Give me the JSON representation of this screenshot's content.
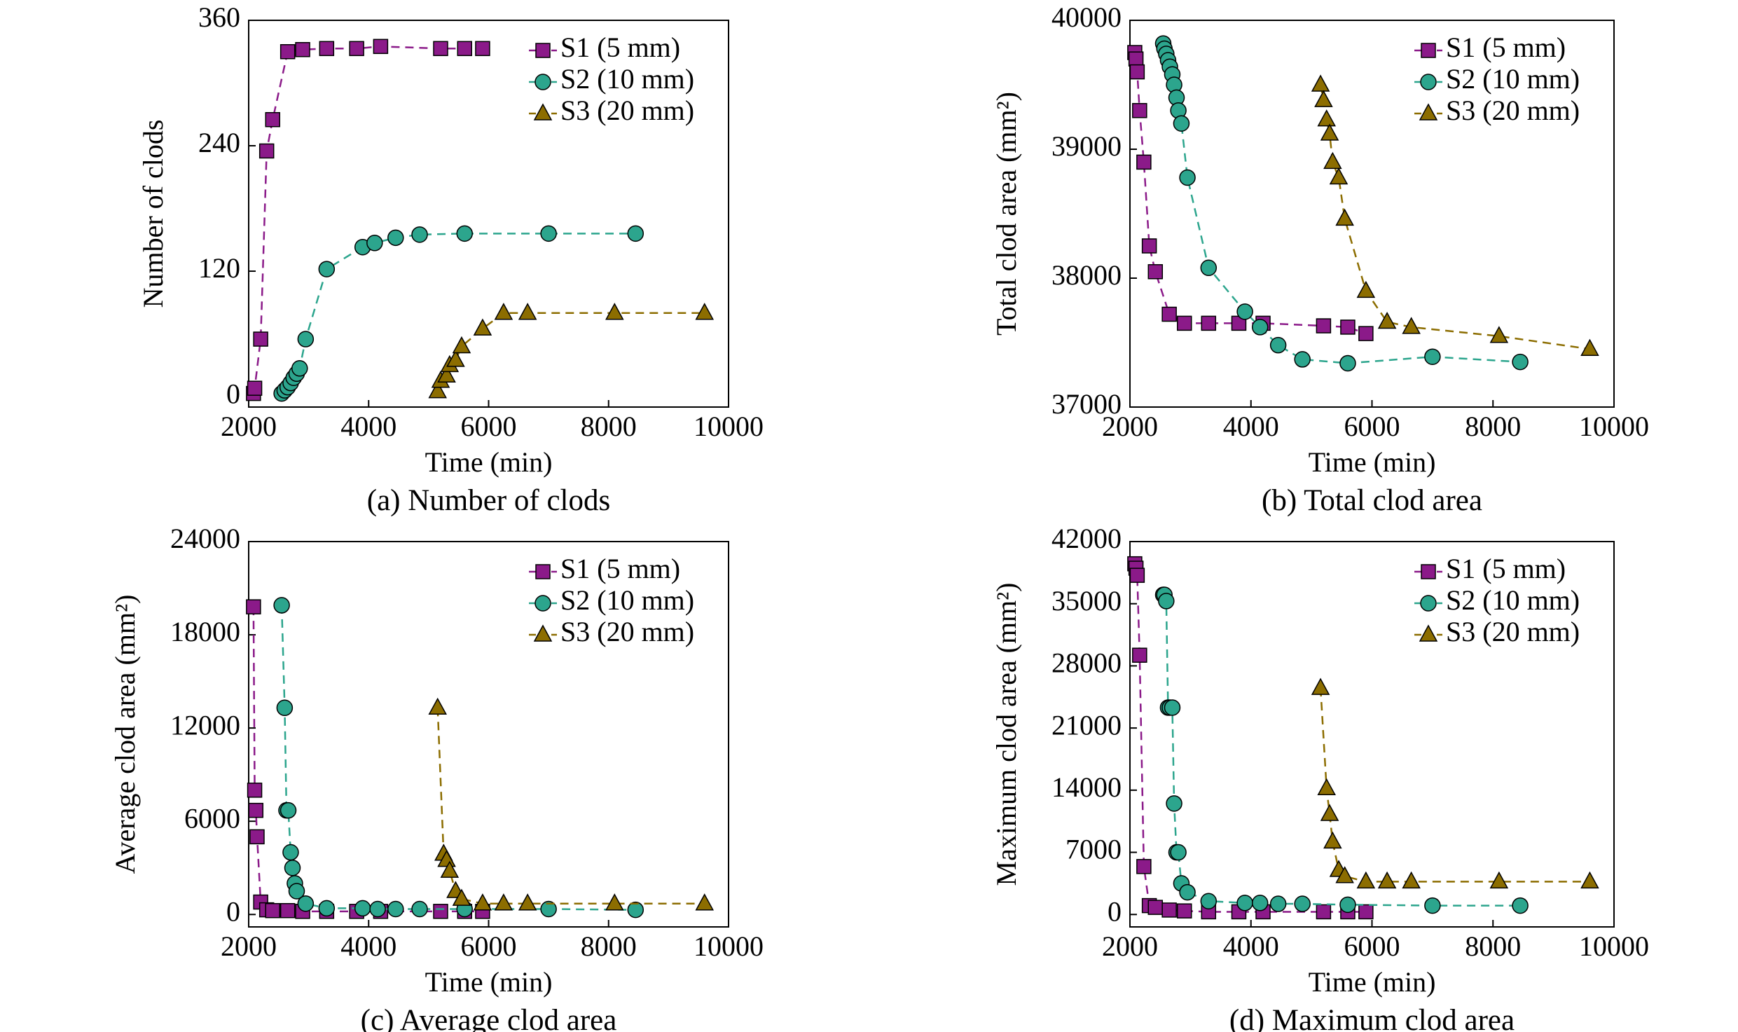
{
  "chart_data": [
    {
      "type": "line",
      "title": "(a) Number of clods",
      "xlabel": "Time (min)",
      "ylabel": "Number of clods",
      "xlim": [
        2000,
        10000
      ],
      "xticks": [
        2000,
        4000,
        6000,
        8000,
        10000
      ],
      "ylim": [
        -10,
        360
      ],
      "yticks": [
        0,
        120,
        240,
        360
      ],
      "legend": "upper right",
      "series": [
        {
          "name": "S1 (5 mm)",
          "color": "#8b1a89",
          "marker": "square",
          "x": [
            2080,
            2100,
            2200,
            2300,
            2400,
            2650,
            2900,
            3300,
            3800,
            4200,
            5200,
            5600,
            5900
          ],
          "values": [
            3,
            8,
            55,
            235,
            265,
            330,
            332,
            333,
            333,
            335,
            333,
            333,
            333
          ]
        },
        {
          "name": "S2 (10 mm)",
          "color": "#2ca58d",
          "marker": "circle",
          "x": [
            2550,
            2600,
            2650,
            2700,
            2750,
            2800,
            2850,
            2950,
            3300,
            3900,
            4100,
            4450,
            4850,
            5600,
            7000,
            8450
          ],
          "values": [
            3,
            6,
            9,
            13,
            18,
            22,
            27,
            55,
            122,
            143,
            147,
            152,
            155,
            156,
            156,
            156
          ]
        },
        {
          "name": "S3 (20 mm)",
          "color": "#8c6d00",
          "marker": "triangle",
          "x": [
            5150,
            5200,
            5300,
            5350,
            5450,
            5550,
            5900,
            6250,
            6650,
            8100,
            9600
          ],
          "values": [
            5,
            15,
            20,
            30,
            35,
            48,
            65,
            80,
            80,
            80,
            80
          ]
        }
      ]
    },
    {
      "type": "line",
      "title": "(b) Total clod area",
      "xlabel": "Time (min)",
      "ylabel": "Total clod area (mm²)",
      "xlim": [
        2000,
        10000
      ],
      "xticks": [
        2000,
        4000,
        6000,
        8000,
        10000
      ],
      "ylim": [
        37000,
        40000
      ],
      "yticks": [
        37000,
        38000,
        39000,
        40000
      ],
      "legend": "upper right",
      "series": [
        {
          "name": "S1 (5 mm)",
          "color": "#8b1a89",
          "marker": "square",
          "x": [
            2080,
            2100,
            2120,
            2160,
            2230,
            2320,
            2420,
            2650,
            2900,
            3300,
            3800,
            4200,
            5200,
            5600,
            5900
          ],
          "values": [
            39750,
            39700,
            39600,
            39300,
            38900,
            38250,
            38050,
            37720,
            37650,
            37650,
            37650,
            37650,
            37630,
            37620,
            37570
          ]
        },
        {
          "name": "S2 (10 mm)",
          "color": "#2ca58d",
          "marker": "circle",
          "x": [
            2550,
            2570,
            2600,
            2630,
            2660,
            2700,
            2730,
            2770,
            2800,
            2850,
            2950,
            3300,
            3900,
            4150,
            4450,
            4850,
            5600,
            7000,
            8450
          ],
          "values": [
            39820,
            39780,
            39740,
            39690,
            39640,
            39580,
            39500,
            39400,
            39300,
            39200,
            38780,
            38080,
            37740,
            37620,
            37480,
            37370,
            37340,
            37390,
            37350
          ]
        },
        {
          "name": "S3 (20 mm)",
          "color": "#8c6d00",
          "marker": "triangle",
          "x": [
            5150,
            5200,
            5250,
            5300,
            5350,
            5450,
            5550,
            5900,
            6250,
            6650,
            8100,
            9600
          ],
          "values": [
            39500,
            39380,
            39230,
            39120,
            38900,
            38780,
            38460,
            37900,
            37660,
            37620,
            37550,
            37450
          ]
        }
      ]
    },
    {
      "type": "line",
      "title": "(c) Average clod area",
      "xlabel": "Time (min)",
      "ylabel": "Average clod area (mm²)",
      "xlim": [
        2000,
        10000
      ],
      "xticks": [
        2000,
        4000,
        6000,
        8000,
        10000
      ],
      "ylim": [
        -800,
        24000
      ],
      "yticks": [
        0,
        6000,
        12000,
        18000,
        24000
      ],
      "legend": "upper right",
      "series": [
        {
          "name": "S1 (5 mm)",
          "color": "#8b1a89",
          "marker": "square",
          "x": [
            2080,
            2100,
            2120,
            2140,
            2200,
            2300,
            2400,
            2650,
            2900,
            3300,
            3800,
            4200,
            5200,
            5600,
            5900
          ],
          "values": [
            19800,
            8000,
            6700,
            5000,
            800,
            300,
            250,
            250,
            200,
            200,
            200,
            200,
            200,
            200,
            200
          ]
        },
        {
          "name": "S2 (10 mm)",
          "color": "#2ca58d",
          "marker": "circle",
          "x": [
            2550,
            2600,
            2630,
            2660,
            2700,
            2730,
            2770,
            2800,
            2950,
            3300,
            3900,
            4150,
            4450,
            4850,
            5600,
            7000,
            8450
          ],
          "values": [
            19900,
            13300,
            6700,
            6700,
            4000,
            3000,
            2000,
            1500,
            700,
            400,
            400,
            350,
            350,
            350,
            350,
            350,
            300
          ]
        },
        {
          "name": "S3 (20 mm)",
          "color": "#8c6d00",
          "marker": "triangle",
          "x": [
            5150,
            5250,
            5300,
            5350,
            5450,
            5550,
            5900,
            6250,
            6650,
            8100,
            9600
          ],
          "values": [
            13300,
            3900,
            3500,
            2800,
            1500,
            1000,
            700,
            700,
            700,
            700,
            700
          ]
        }
      ]
    },
    {
      "type": "line",
      "title": "(d) Maximum clod area",
      "xlabel": "Time (min)",
      "ylabel": "Maximum clod area (mm²)",
      "xlim": [
        2000,
        10000
      ],
      "xticks": [
        2000,
        4000,
        6000,
        8000,
        10000
      ],
      "ylim": [
        -1400,
        42000
      ],
      "yticks": [
        0,
        7000,
        14000,
        21000,
        28000,
        35000,
        42000
      ],
      "legend": "upper right",
      "series": [
        {
          "name": "S1 (5 mm)",
          "color": "#8b1a89",
          "marker": "square",
          "x": [
            2080,
            2100,
            2120,
            2160,
            2230,
            2320,
            2420,
            2650,
            2900,
            3300,
            3800,
            4200,
            5200,
            5600,
            5900
          ],
          "values": [
            39500,
            39000,
            38200,
            29200,
            5400,
            1000,
            800,
            500,
            400,
            300,
            300,
            300,
            300,
            300,
            300
          ]
        },
        {
          "name": "S2 (10 mm)",
          "color": "#2ca58d",
          "marker": "circle",
          "x": [
            2550,
            2570,
            2600,
            2630,
            2660,
            2700,
            2730,
            2770,
            2800,
            2850,
            2950,
            3300,
            3900,
            4150,
            4450,
            4850,
            5600,
            7000,
            8450
          ],
          "values": [
            36000,
            36000,
            35300,
            23300,
            23300,
            23300,
            12500,
            7000,
            7000,
            3500,
            2500,
            1500,
            1300,
            1300,
            1200,
            1200,
            1100,
            1000,
            1000
          ]
        },
        {
          "name": "S3 (20 mm)",
          "color": "#8c6d00",
          "marker": "triangle",
          "x": [
            5150,
            5250,
            5300,
            5350,
            5450,
            5550,
            5900,
            6250,
            6650,
            8100,
            9600
          ],
          "values": [
            25500,
            14200,
            11300,
            8200,
            5000,
            4300,
            3700,
            3700,
            3700,
            3700,
            3700
          ]
        }
      ]
    }
  ]
}
